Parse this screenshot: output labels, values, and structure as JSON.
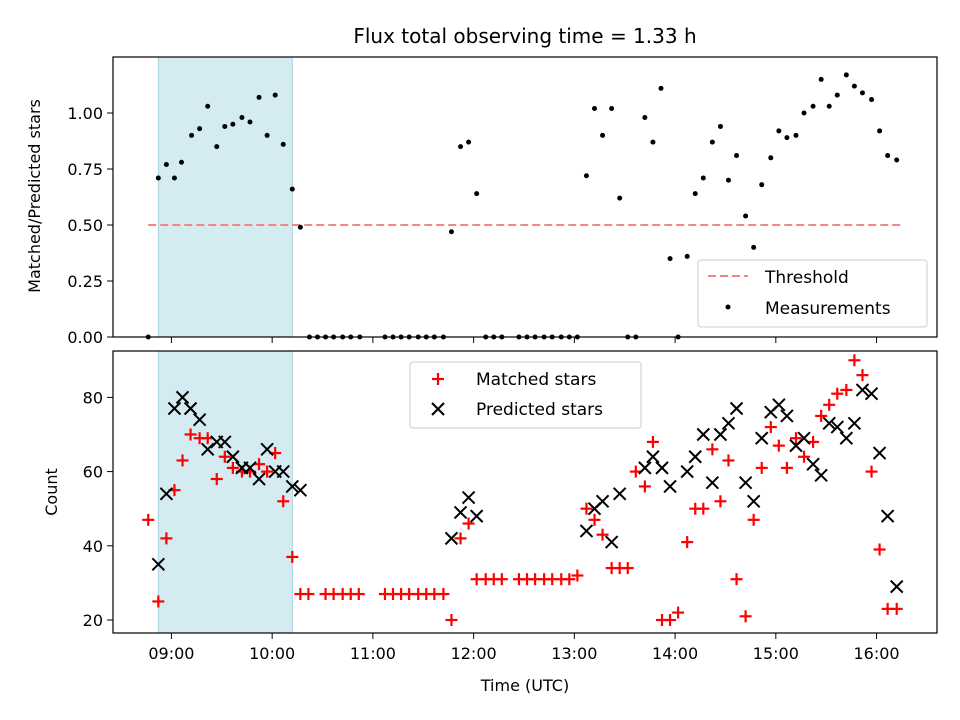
{
  "chart_data": [
    {
      "type": "scatter",
      "title": "Flux total observing time = 1.33 h",
      "ylabel": "Matched/Predicted stars",
      "xlabel": "",
      "xlim": [
        8.42,
        16.6
      ],
      "ylim": [
        0.0,
        1.25
      ],
      "yticks": [
        0.0,
        0.25,
        0.5,
        0.75,
        1.0
      ],
      "ytick_labels": [
        "0.00",
        "0.25",
        "0.50",
        "0.75",
        "1.00"
      ],
      "shaded_span": [
        8.87,
        10.2
      ],
      "shaded_color": "#d4ebf1",
      "threshold": {
        "name": "Threshold",
        "y": 0.5,
        "x_range": [
          8.77,
          16.25
        ],
        "color": "#f58484"
      },
      "legend": {
        "placement": "lower-right",
        "entries": [
          "Threshold",
          "Measurements"
        ]
      },
      "series": [
        {
          "name": "Measurements",
          "color": "#000000",
          "marker": "dot",
          "x": [
            8.77,
            8.87,
            8.95,
            9.03,
            9.1,
            9.2,
            9.28,
            9.36,
            9.45,
            9.53,
            9.61,
            9.7,
            9.78,
            9.87,
            9.95,
            10.03,
            10.11,
            10.2,
            10.28,
            10.37,
            10.45,
            10.53,
            10.61,
            10.7,
            10.78,
            10.87,
            11.12,
            11.2,
            11.28,
            11.36,
            11.45,
            11.53,
            11.61,
            11.7,
            11.78,
            11.87,
            11.95,
            12.03,
            12.12,
            12.2,
            12.28,
            12.45,
            12.53,
            12.61,
            12.7,
            12.78,
            12.87,
            12.95,
            13.03,
            13.12,
            13.2,
            13.28,
            13.37,
            13.45,
            13.53,
            13.61,
            13.7,
            13.78,
            13.86,
            13.95,
            14.03,
            14.12,
            14.2,
            14.28,
            14.37,
            14.45,
            14.53,
            14.61,
            14.7,
            14.78,
            14.86,
            14.95,
            15.03,
            15.11,
            15.2,
            15.28,
            15.37,
            15.45,
            15.53,
            15.61,
            15.7,
            15.78,
            15.86,
            15.95,
            16.03,
            16.11,
            16.2
          ],
          "y": [
            0.0,
            0.71,
            0.77,
            0.71,
            0.78,
            0.9,
            0.93,
            1.03,
            0.85,
            0.94,
            0.95,
            0.98,
            0.96,
            1.07,
            0.9,
            1.08,
            0.86,
            0.66,
            0.49,
            0.0,
            0.0,
            0.0,
            0.0,
            0.0,
            0.0,
            0.0,
            0.0,
            0.0,
            0.0,
            0.0,
            0.0,
            0.0,
            0.0,
            0.0,
            0.47,
            0.85,
            0.87,
            0.64,
            0.0,
            0.0,
            0.0,
            0.0,
            0.0,
            0.0,
            0.0,
            0.0,
            0.0,
            0.0,
            0.0,
            0.72,
            1.02,
            0.9,
            1.02,
            0.62,
            0.0,
            0.0,
            0.98,
            0.87,
            1.11,
            0.35,
            0.0,
            0.36,
            0.64,
            0.71,
            0.87,
            0.94,
            0.7,
            0.81,
            0.54,
            0.4,
            0.68,
            0.8,
            0.92,
            0.89,
            0.9,
            1.0,
            1.03,
            1.15,
            1.03,
            1.08,
            1.17,
            1.12,
            1.09,
            1.06,
            0.92,
            0.81,
            0.79
          ]
        }
      ]
    },
    {
      "type": "scatter",
      "title": "",
      "xlabel": "Time (UTC)",
      "ylabel": "Count",
      "xlim": [
        8.42,
        16.6
      ],
      "ylim": [
        16.5,
        92.5
      ],
      "xticks": [
        9,
        10,
        11,
        12,
        13,
        14,
        15,
        16
      ],
      "xtick_labels": [
        "09:00",
        "10:00",
        "11:00",
        "12:00",
        "13:00",
        "14:00",
        "15:00",
        "16:00"
      ],
      "yticks": [
        20,
        40,
        60,
        80
      ],
      "ytick_labels": [
        "20",
        "40",
        "60",
        "80"
      ],
      "shaded_span": [
        8.87,
        10.2
      ],
      "shaded_color": "#d4ebf1",
      "legend": {
        "placement": "top-center",
        "entries": [
          "Matched stars",
          "Predicted stars"
        ]
      },
      "series": [
        {
          "name": "Matched stars",
          "color": "#ff0000",
          "marker": "plus",
          "x": [
            8.77,
            8.87,
            8.95,
            9.03,
            9.11,
            9.19,
            9.28,
            9.36,
            9.45,
            9.53,
            9.61,
            9.7,
            9.78,
            9.87,
            9.95,
            10.03,
            10.11,
            10.2,
            10.28,
            10.36,
            10.53,
            10.61,
            10.7,
            10.78,
            10.86,
            11.12,
            11.2,
            11.28,
            11.36,
            11.45,
            11.53,
            11.61,
            11.7,
            11.78,
            11.87,
            11.95,
            12.03,
            12.12,
            12.2,
            12.28,
            12.45,
            12.53,
            12.61,
            12.7,
            12.78,
            12.87,
            12.95,
            13.03,
            13.12,
            13.2,
            13.28,
            13.37,
            13.45,
            13.53,
            13.61,
            13.7,
            13.78,
            13.87,
            13.95,
            14.03,
            14.12,
            14.2,
            14.28,
            14.37,
            14.45,
            14.53,
            14.61,
            14.7,
            14.78,
            14.86,
            14.95,
            15.03,
            15.11,
            15.2,
            15.28,
            15.37,
            15.45,
            15.53,
            15.61,
            15.7,
            15.78,
            15.86,
            15.95,
            16.03,
            16.11,
            16.2
          ],
          "y": [
            47,
            25,
            42,
            55,
            63,
            70,
            69,
            69,
            58,
            64,
            61,
            60,
            60,
            62,
            60,
            65,
            52,
            37,
            27,
            27,
            27,
            27,
            27,
            27,
            27,
            27,
            27,
            27,
            27,
            27,
            27,
            27,
            27,
            20,
            42,
            46,
            31,
            31,
            31,
            31,
            31,
            31,
            31,
            31,
            31,
            31,
            31,
            32,
            50,
            47,
            43,
            34,
            34,
            34,
            60,
            56,
            68,
            20,
            20,
            22,
            41,
            50,
            50,
            66,
            52,
            63,
            31,
            21,
            47,
            61,
            72,
            67,
            61,
            69,
            64,
            68,
            75,
            78,
            81,
            82,
            90,
            86,
            60,
            39,
            23,
            23
          ]
        },
        {
          "name": "Predicted stars",
          "color": "#000000",
          "marker": "x",
          "x": [
            8.87,
            8.95,
            9.03,
            9.11,
            9.19,
            9.28,
            9.36,
            9.45,
            9.53,
            9.61,
            9.7,
            9.78,
            9.87,
            9.95,
            10.03,
            10.11,
            10.2,
            10.28,
            11.78,
            11.87,
            11.95,
            12.03,
            13.12,
            13.2,
            13.28,
            13.37,
            13.45,
            13.7,
            13.78,
            13.87,
            13.95,
            14.12,
            14.2,
            14.28,
            14.37,
            14.45,
            14.53,
            14.61,
            14.7,
            14.78,
            14.86,
            14.95,
            15.03,
            15.11,
            15.2,
            15.28,
            15.37,
            15.45,
            15.53,
            15.61,
            15.7,
            15.78,
            15.86,
            15.95,
            16.03,
            16.11,
            16.2
          ],
          "y": [
            35,
            54,
            77,
            80,
            77,
            74,
            66,
            68,
            68,
            64,
            61,
            61,
            58,
            66,
            60,
            60,
            56,
            55,
            42,
            49,
            53,
            48,
            44,
            50,
            52,
            41,
            54,
            61,
            64,
            61,
            56,
            60,
            64,
            70,
            57,
            70,
            73,
            77,
            57,
            52,
            69,
            76,
            78,
            75,
            67,
            69,
            62,
            59,
            73,
            72,
            69,
            73,
            82,
            81,
            65,
            48,
            29
          ]
        }
      ]
    }
  ]
}
